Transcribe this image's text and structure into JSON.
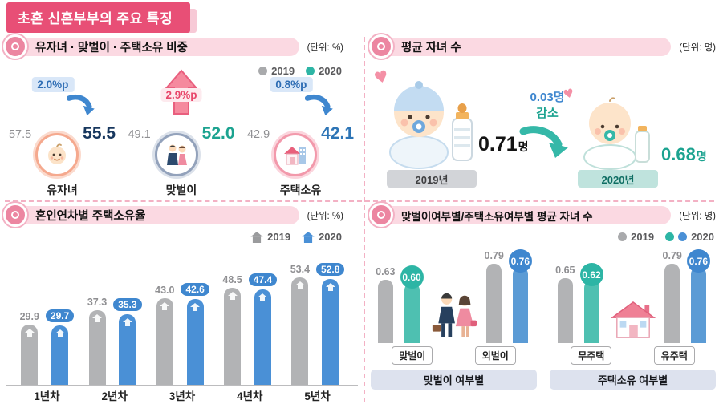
{
  "title_banner": "초혼 신혼부부의 주요 특징",
  "q1": {
    "header": "유자녀 · 맞벌이 · 주택소유 비중",
    "unit": "(단위: %)",
    "legend": {
      "y2019": "2019",
      "y2020": "2020"
    },
    "stats": [
      {
        "label": "유자녀",
        "change": "2.0%p",
        "direction": "decrease",
        "v2019": "57.5",
        "v2020": "55.5"
      },
      {
        "label": "맞벌이",
        "change": "2.9%p",
        "direction": "increase",
        "v2019": "49.1",
        "v2020": "52.0"
      },
      {
        "label": "주택소유",
        "change": "0.8%p",
        "direction": "decrease",
        "v2019": "42.9",
        "v2020": "42.1"
      }
    ]
  },
  "q2": {
    "header": "평균 자녀 수",
    "unit": "(단위: 명)",
    "left": {
      "year": "2019년",
      "value": "0.71",
      "suffix": "명"
    },
    "change": {
      "amount": "0.03명",
      "word": "감소"
    },
    "right": {
      "year": "2020년",
      "value": "0.68",
      "suffix": "명"
    }
  },
  "q3": {
    "header": "혼인연차별 주택소유율",
    "unit": "(단위: %)",
    "legend": {
      "y2019": "2019",
      "y2020": "2020"
    },
    "groups": [
      {
        "label": "1년차",
        "v2019": "29.9",
        "v2020": "29.7"
      },
      {
        "label": "2년차",
        "v2019": "37.3",
        "v2020": "35.3"
      },
      {
        "label": "3년차",
        "v2019": "43.0",
        "v2020": "42.6"
      },
      {
        "label": "4년차",
        "v2019": "48.5",
        "v2020": "47.4"
      },
      {
        "label": "5년차",
        "v2019": "53.4",
        "v2020": "52.8"
      }
    ]
  },
  "q4": {
    "header": "맞벌이여부별/주택소유여부별 평균 자녀 수",
    "unit": "(단위: 명)",
    "legend": {
      "y2019": "2019",
      "y2020": "2020"
    },
    "sections": [
      {
        "title": "맞벌이 여부별",
        "bars": [
          {
            "label": "맞벌이",
            "v2019": "0.63",
            "v2020": "0.60"
          },
          {
            "label": "외벌이",
            "v2019": "0.79",
            "v2020": "0.76"
          }
        ]
      },
      {
        "title": "주택소유 여부별",
        "bars": [
          {
            "label": "무주택",
            "v2019": "0.65",
            "v2020": "0.62"
          },
          {
            "label": "유주택",
            "v2019": "0.79",
            "v2020": "0.76"
          }
        ]
      }
    ]
  },
  "colors": {
    "accent_pink": "#e84f76",
    "gray_2019": "#b2b3b5",
    "teal_2020": "#2db5a5",
    "blue_2020": "#4a90d6",
    "badge_blue_text": "#2e6db4",
    "badge_pink_text": "#e8476b"
  },
  "chart_data": [
    {
      "type": "bar",
      "title": "유자녀 · 맞벌이 · 주택소유 비중",
      "unit": "%",
      "categories": [
        "유자녀",
        "맞벌이",
        "주택소유"
      ],
      "series": [
        {
          "name": "2019",
          "values": [
            57.5,
            49.1,
            42.9
          ]
        },
        {
          "name": "2020",
          "values": [
            55.5,
            52.0,
            42.1
          ]
        }
      ],
      "annotations": [
        "2.0%p 감소",
        "2.9%p 증가",
        "0.8%p 감소"
      ],
      "legend_position": "top-right"
    },
    {
      "type": "bar",
      "title": "평균 자녀 수",
      "unit": "명",
      "categories": [
        "2019년",
        "2020년"
      ],
      "values": [
        0.71,
        0.68
      ],
      "annotations": [
        "0.03명 감소"
      ]
    },
    {
      "type": "bar",
      "title": "혼인연차별 주택소유율",
      "unit": "%",
      "categories": [
        "1년차",
        "2년차",
        "3년차",
        "4년차",
        "5년차"
      ],
      "series": [
        {
          "name": "2019",
          "values": [
            29.9,
            37.3,
            43.0,
            48.5,
            53.4
          ]
        },
        {
          "name": "2020",
          "values": [
            29.7,
            35.3,
            42.6,
            47.4,
            52.8
          ]
        }
      ],
      "ylim": [
        0,
        60
      ],
      "grid": false,
      "legend_position": "top-right"
    },
    {
      "type": "bar",
      "title": "맞벌이여부별/주택소유여부별 평균 자녀 수",
      "unit": "명",
      "groups": [
        {
          "name": "맞벌이 여부별",
          "categories": [
            "맞벌이",
            "외벌이"
          ],
          "series": [
            {
              "name": "2019",
              "values": [
                0.63,
                0.79
              ]
            },
            {
              "name": "2020",
              "values": [
                0.6,
                0.76
              ]
            }
          ]
        },
        {
          "name": "주택소유 여부별",
          "categories": [
            "무주택",
            "유주택"
          ],
          "series": [
            {
              "name": "2019",
              "values": [
                0.65,
                0.79
              ]
            },
            {
              "name": "2020",
              "values": [
                0.62,
                0.76
              ]
            }
          ]
        }
      ],
      "legend_position": "top-right"
    }
  ]
}
